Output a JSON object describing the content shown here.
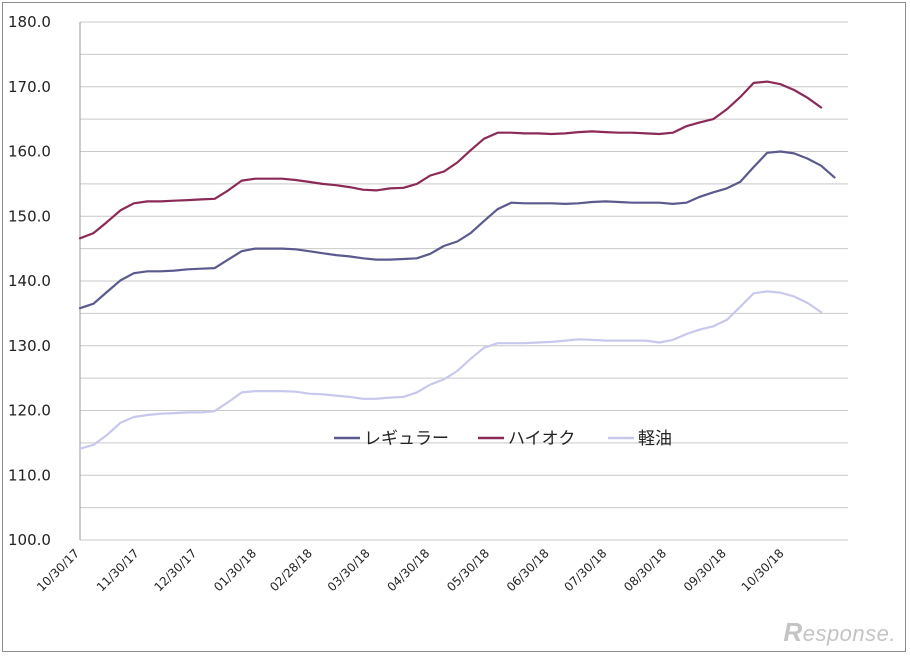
{
  "chart_data": {
    "type": "line",
    "title": "",
    "xlabel": "",
    "ylabel": "",
    "ylim": [
      100,
      180
    ],
    "yticks": [
      "100.0",
      "110.0",
      "120.0",
      "130.0",
      "140.0",
      "150.0",
      "160.0",
      "170.0",
      "180.0"
    ],
    "ytick_values": [
      100,
      110,
      120,
      130,
      140,
      150,
      160,
      170,
      180
    ],
    "grid": "horizontal",
    "legend_position": "center",
    "x_tick_labels": [
      "10/30/17",
      "11/30/17",
      "12/30/17",
      "01/30/18",
      "02/28/18",
      "03/30/18",
      "04/30/18",
      "05/30/18",
      "06/30/18",
      "07/30/18",
      "08/30/18",
      "09/30/18",
      "10/30/18"
    ],
    "x_tick_weeks": [
      0,
      4.43,
      8.71,
      13.14,
      17.29,
      21.57,
      26.0,
      30.43,
      34.86,
      39.14,
      43.57,
      48.0,
      52.29
    ],
    "x_weeks": [
      0,
      1,
      2,
      3,
      4,
      5,
      6,
      7,
      8,
      9,
      10,
      11,
      12,
      13,
      14,
      15,
      16,
      17,
      18,
      19,
      20,
      21,
      22,
      23,
      24,
      25,
      26,
      27,
      28,
      29,
      30,
      31,
      32,
      33,
      34,
      35,
      36,
      37,
      38,
      39,
      40,
      41,
      42,
      43,
      44,
      45,
      46,
      47,
      48,
      49,
      50,
      51,
      52,
      53,
      54,
      55,
      56,
      57
    ],
    "series": [
      {
        "name": "レギュラー",
        "color": "#5a5a8e",
        "values": [
          135.8,
          136.5,
          138.3,
          140.1,
          141.2,
          141.5,
          141.5,
          141.6,
          141.8,
          141.9,
          142.0,
          143.3,
          144.6,
          145.0,
          145.0,
          145.0,
          144.9,
          144.6,
          144.3,
          144.0,
          143.8,
          143.5,
          143.3,
          143.3,
          143.4,
          143.5,
          144.2,
          145.4,
          146.1,
          147.4,
          149.3,
          151.1,
          152.1,
          152.0,
          152.0,
          152.0,
          151.9,
          152.0,
          152.2,
          152.3,
          152.2,
          152.1,
          152.1,
          152.1,
          151.9,
          152.1,
          153.0,
          153.7,
          154.3,
          155.3,
          157.6,
          159.8,
          160.0,
          159.7,
          158.9,
          157.8,
          156.0,
          null
        ]
      },
      {
        "name": "ハイオク",
        "color": "#8b2a56",
        "values": [
          146.6,
          147.4,
          149.1,
          150.9,
          152.0,
          152.3,
          152.3,
          152.4,
          152.5,
          152.6,
          152.7,
          154.0,
          155.5,
          155.8,
          155.8,
          155.8,
          155.6,
          155.3,
          155.0,
          154.8,
          154.5,
          154.1,
          154.0,
          154.3,
          154.4,
          155.0,
          156.3,
          156.9,
          158.3,
          160.2,
          162.0,
          162.9,
          162.9,
          162.8,
          162.8,
          162.7,
          162.8,
          163.0,
          163.1,
          163.0,
          162.9,
          162.9,
          162.8,
          162.7,
          162.9,
          163.9,
          164.5,
          165.0,
          166.5,
          168.4,
          170.6,
          170.8,
          170.4,
          169.5,
          168.3,
          166.8,
          null,
          null
        ]
      },
      {
        "name": "軽油",
        "color": "#c8c8ee",
        "values": [
          114.1,
          114.7,
          116.2,
          118.1,
          119.0,
          119.3,
          119.5,
          119.6,
          119.7,
          119.7,
          119.9,
          121.3,
          122.8,
          123.0,
          123.0,
          123.0,
          122.9,
          122.6,
          122.5,
          122.3,
          122.1,
          121.8,
          121.8,
          122.0,
          122.1,
          122.8,
          124.0,
          124.8,
          126.1,
          128.0,
          129.7,
          130.4,
          130.4,
          130.4,
          130.5,
          130.6,
          130.8,
          131.0,
          130.9,
          130.8,
          130.8,
          130.8,
          130.8,
          130.5,
          130.9,
          131.8,
          132.5,
          133.0,
          134.0,
          136.0,
          138.1,
          138.4,
          138.2,
          137.6,
          136.6,
          135.2,
          null,
          null
        ]
      }
    ]
  },
  "watermark": {
    "r": "R",
    "rest": "esponse."
  }
}
